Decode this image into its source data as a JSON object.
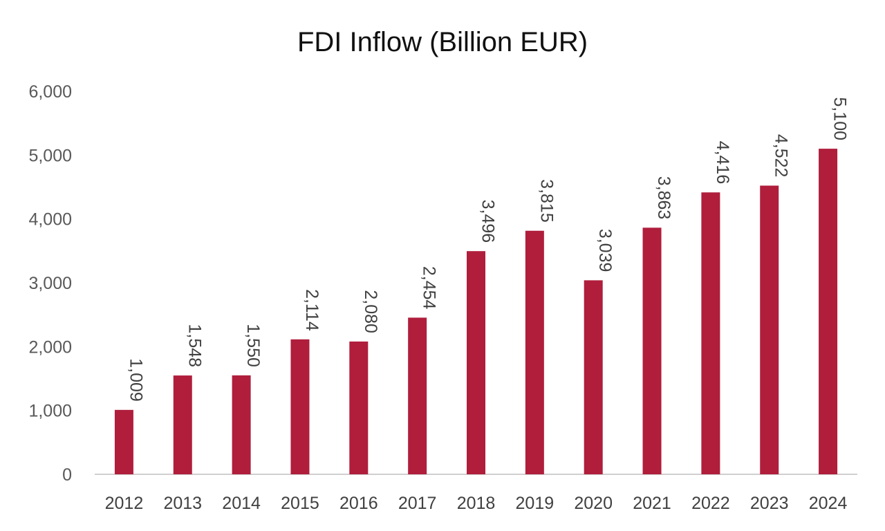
{
  "chart_data": {
    "type": "bar",
    "title": "FDI Inflow (Billion EUR)",
    "xlabel": "",
    "ylabel": "",
    "categories": [
      "2012",
      "2013",
      "2014",
      "2015",
      "2016",
      "2017",
      "2018",
      "2019",
      "2020",
      "2021",
      "2022",
      "2023",
      "2024"
    ],
    "values": [
      1009,
      1548,
      1550,
      2114,
      2080,
      2454,
      3496,
      3815,
      3039,
      3863,
      4416,
      4522,
      5100
    ],
    "data_labels": [
      "1,009",
      "1,548",
      "1,550",
      "2,114",
      "2,080",
      "2,454",
      "3,496",
      "3,815",
      "3,039",
      "3,863",
      "4,416",
      "4,522",
      "5,100"
    ],
    "ylim": [
      0,
      6000
    ],
    "yticks": [
      0,
      1000,
      2000,
      3000,
      4000,
      5000,
      6000
    ],
    "ytick_labels": [
      "0",
      "1,000",
      "2,000",
      "3,000",
      "4,000",
      "5,000",
      "6,000"
    ],
    "grid": false,
    "legend": "none",
    "data_label_orientation": "vertical",
    "colors": {
      "bar": "#B01E3C",
      "axis": "#BFBFBF"
    }
  }
}
